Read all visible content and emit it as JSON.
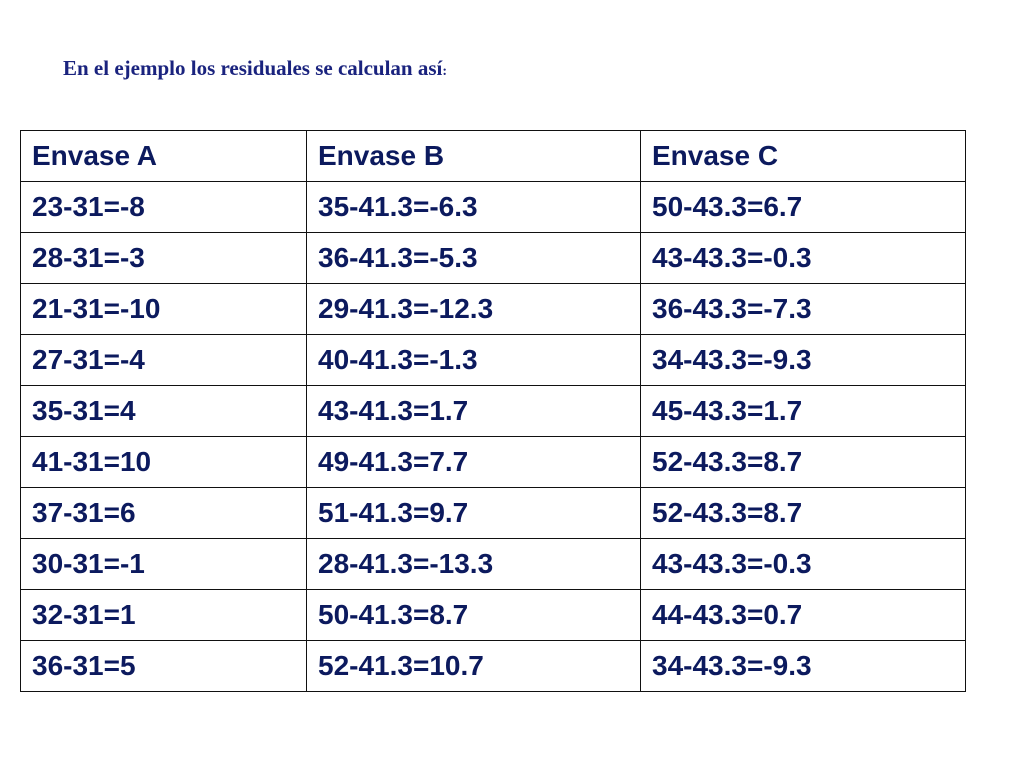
{
  "heading": {
    "text": "En el ejemplo los residuales se calculan así",
    "suffix": ":"
  },
  "table": {
    "headers": [
      "Envase A",
      "Envase B",
      "Envase C"
    ],
    "rows": [
      [
        "23-31=-8",
        "35-41.3=-6.3",
        "50-43.3=6.7"
      ],
      [
        "28-31=-3",
        "36-41.3=-5.3",
        "43-43.3=-0.3"
      ],
      [
        "21-31=-10",
        "29-41.3=-12.3",
        "36-43.3=-7.3"
      ],
      [
        "27-31=-4",
        "40-41.3=-1.3",
        "34-43.3=-9.3"
      ],
      [
        "35-31=4",
        "43-41.3=1.7",
        "45-43.3=1.7"
      ],
      [
        "41-31=10",
        "49-41.3=7.7",
        "52-43.3=8.7"
      ],
      [
        "37-31=6",
        "51-41.3=9.7",
        "52-43.3=8.7"
      ],
      [
        "30-31=-1",
        "28-41.3=-13.3",
        "43-43.3=-0.3"
      ],
      [
        "32-31=1",
        "50-41.3=8.7",
        "44-43.3=0.7"
      ],
      [
        "36-31=5",
        "52-41.3=10.7",
        "34-43.3=-9.3"
      ]
    ]
  }
}
